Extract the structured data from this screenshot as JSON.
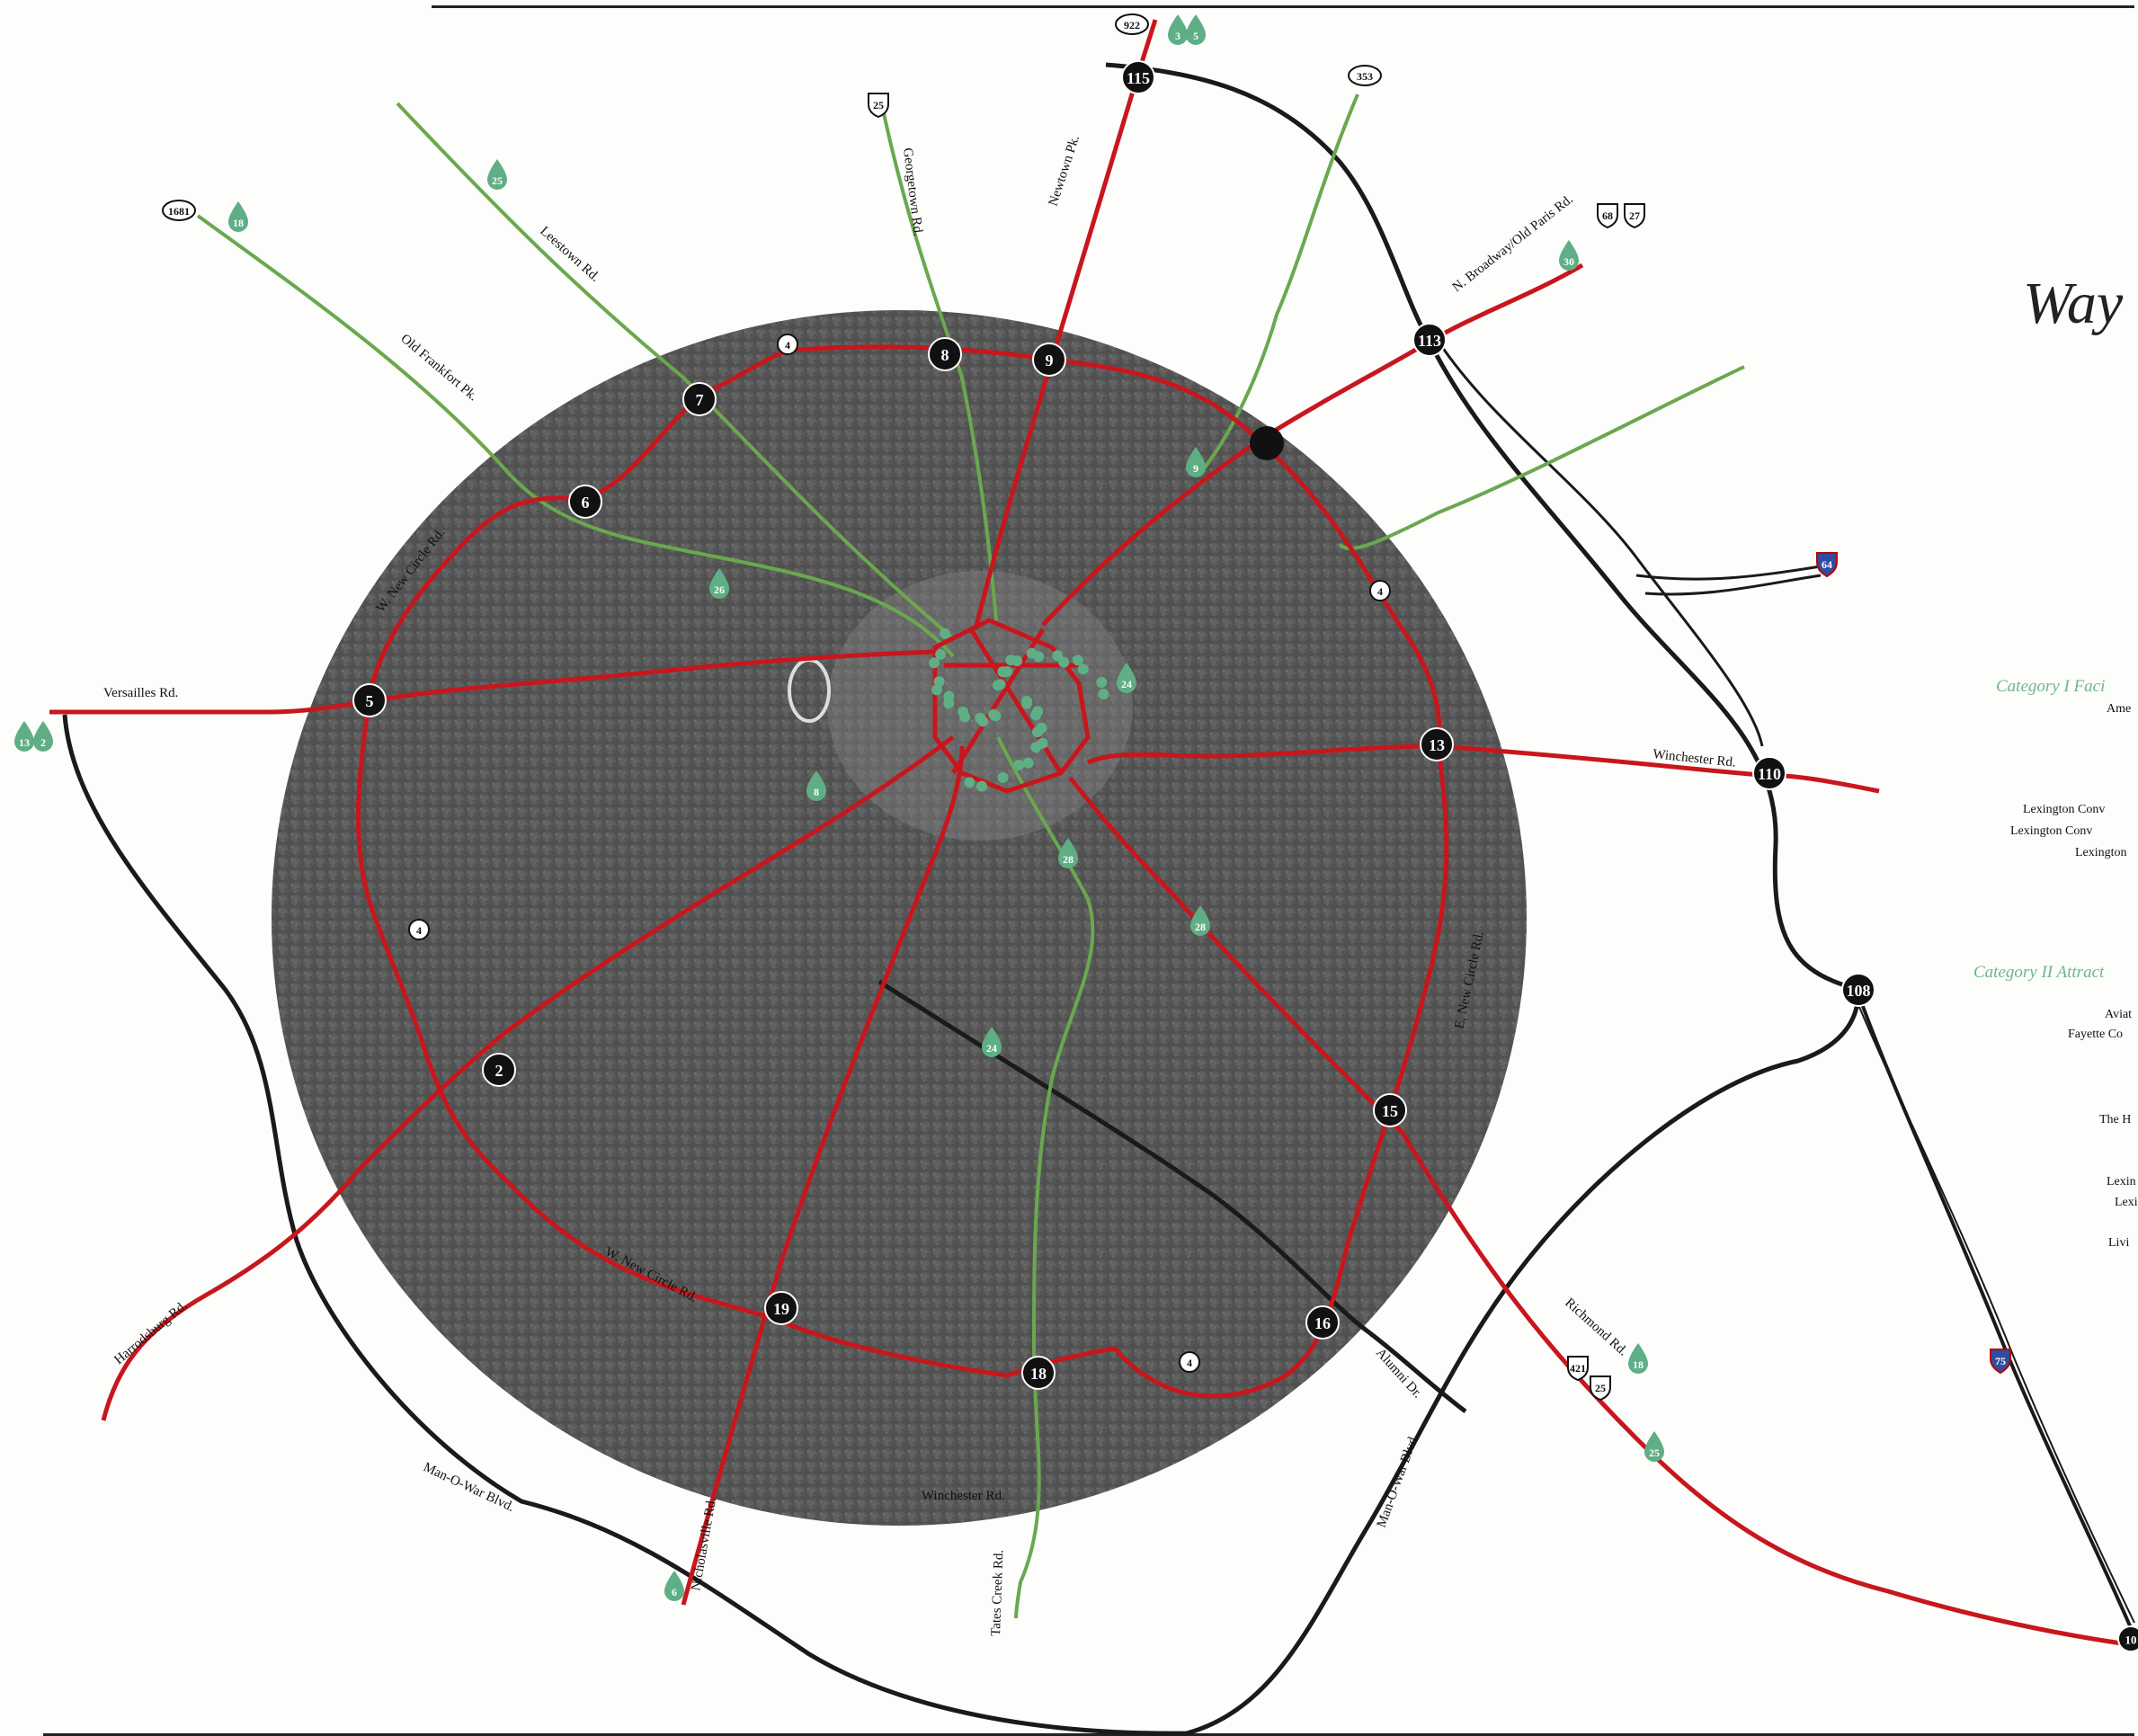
{
  "title": "Way",
  "colors": {
    "arterial": "#c8161d",
    "green_route": "#6aa84f",
    "black_road": "#1a1a1a",
    "marker": "#5fae85",
    "heading": "#6fb58e"
  },
  "road_labels": [
    "Versailles Rd.",
    "W. New Circle Rd.",
    "Old Frankfort Pk.",
    "Leestown Rd.",
    "Georgetown Rd.",
    "Newtown Pk.",
    "N. Broadway/Old Paris Rd.",
    "Winchester Rd.",
    "E. New Circle Rd.",
    "Richmond Rd.",
    "Alumni Dr.",
    "Man-O-War Blvd.",
    "Tates Creek Rd.",
    "Nicholasville Rd.",
    "W. New Circle Rd.",
    "Man-O-War Blvd.",
    "Harrodsburg Rd.",
    "Winchester Rd."
  ],
  "exits": [
    "2",
    "5",
    "6",
    "7",
    "8",
    "9",
    "13",
    "15",
    "16",
    "18",
    "19",
    "113",
    "115",
    "110",
    "108",
    "10"
  ],
  "circle_route_markers": [
    "4",
    "4",
    "4",
    "4"
  ],
  "route_shields": [
    "922",
    "353",
    "25",
    "1681",
    "68",
    "27",
    "421",
    "25"
  ],
  "interstate_shields": [
    "64",
    "75"
  ],
  "markers": [
    "3",
    "5",
    "25",
    "18",
    "13",
    "2",
    "30",
    "26",
    "24",
    "9",
    "8",
    "28",
    "18",
    "25",
    "28",
    "24",
    "6"
  ],
  "sidebar": {
    "category1_heading": "Category I Faci",
    "category1_items": [
      "Ame",
      "Lexington Conv",
      "Lexington Conv",
      "Lexington"
    ],
    "category2_heading": "Category II Attract",
    "category2_items": [
      "Aviat",
      "Fayette Co",
      "The H",
      "Lexin",
      "Lexi",
      "Livi"
    ]
  }
}
